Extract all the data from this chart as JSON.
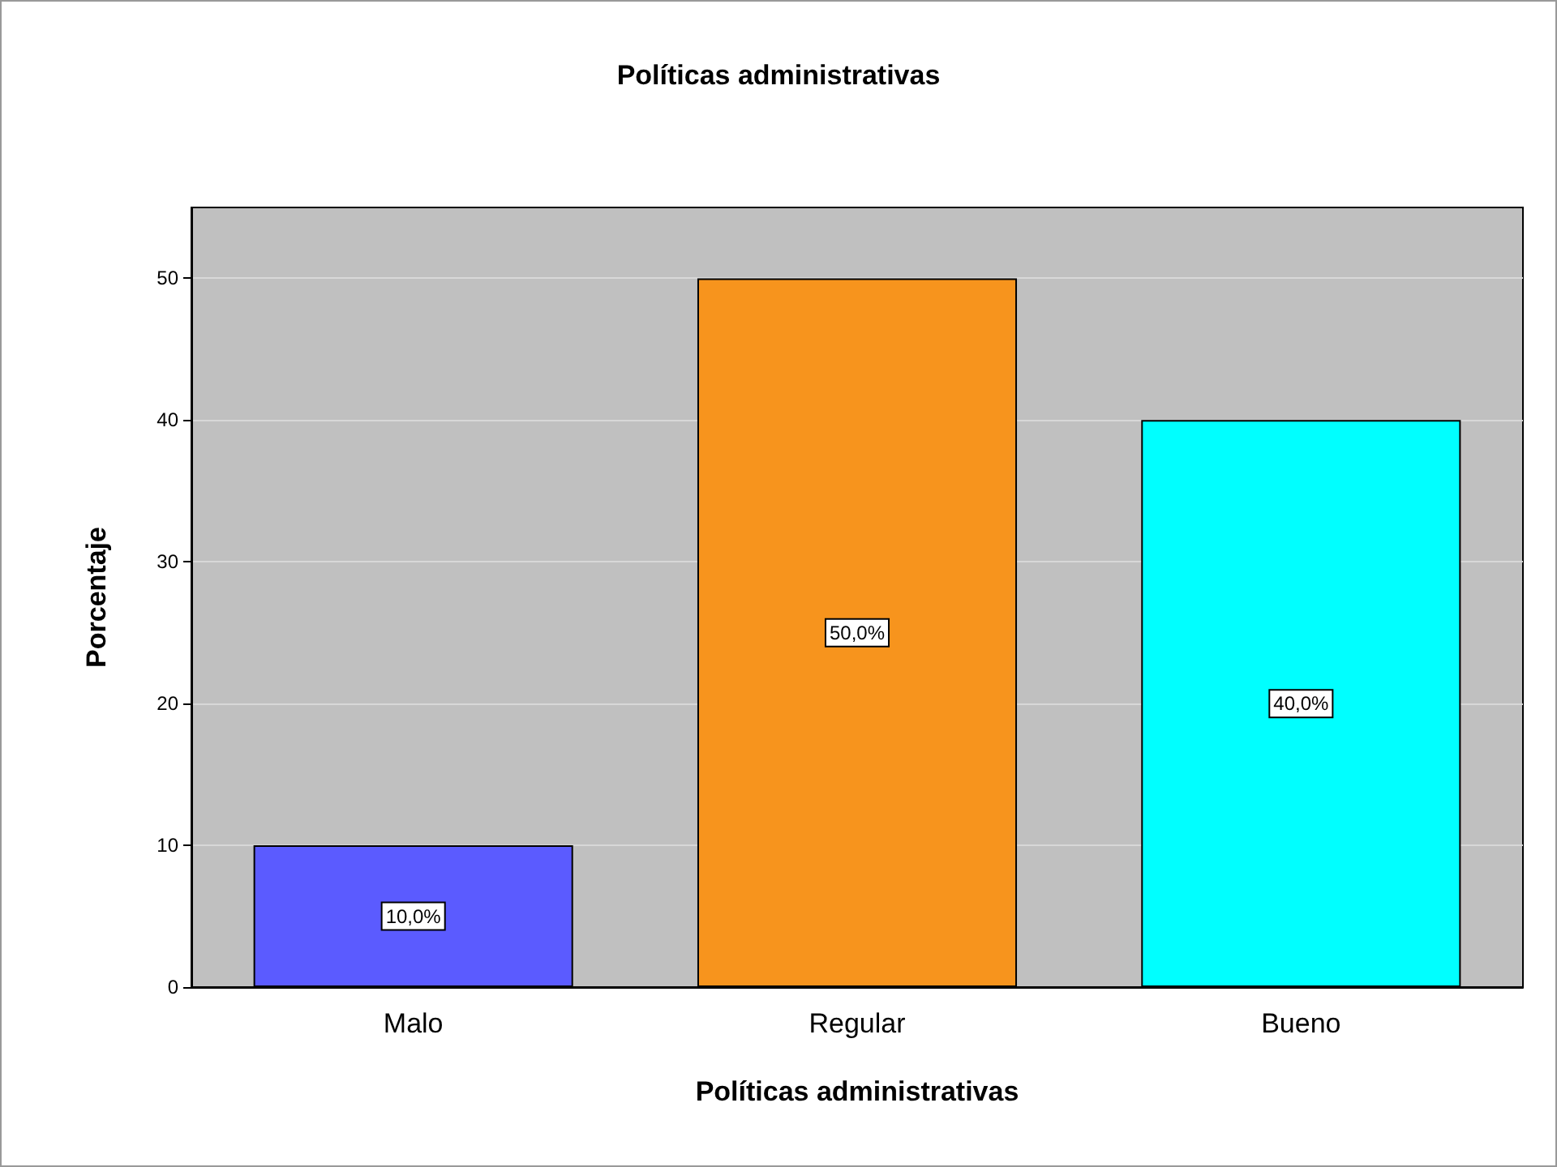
{
  "chart_data": {
    "type": "bar",
    "title": "Políticas administrativas",
    "xlabel": "Políticas administrativas",
    "ylabel": "Porcentaje",
    "categories": [
      "Malo",
      "Regular",
      "Bueno"
    ],
    "values": [
      10,
      50,
      40
    ],
    "colors": [
      "#5b5bff",
      "#f7941d",
      "#00ffff"
    ],
    "value_labels": [
      "10,0%",
      "50,0%",
      "40,0%"
    ],
    "ylim": [
      0,
      55
    ],
    "yticks": [
      0,
      10,
      20,
      30,
      40,
      50
    ],
    "grid": "y"
  }
}
